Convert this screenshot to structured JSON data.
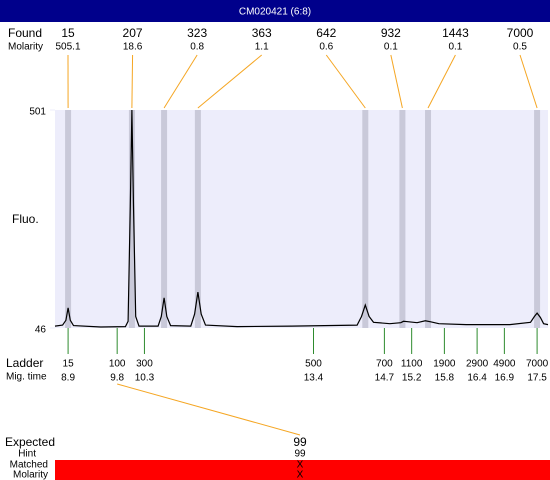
{
  "chart_data": {
    "type": "line",
    "title": "CM020421 (6:8)",
    "found_label": "Found",
    "molarity_label": "Molarity",
    "y_label": "Fluo.",
    "ladder_label": "Ladder",
    "time_label": "Mig. time",
    "ylim": [
      46,
      501
    ],
    "yticks": [
      46,
      501
    ],
    "xlim": [
      8.66,
      17.7
    ],
    "found": [
      {
        "size": 15,
        "molarity": 505.1,
        "time": 8.9
      },
      {
        "size": 207,
        "molarity": 18.6,
        "time": 10.07
      },
      {
        "size": 323,
        "molarity": 0.8,
        "time": 10.66
      },
      {
        "size": 363,
        "molarity": 1.1,
        "time": 11.28
      },
      {
        "size": 642,
        "molarity": 0.6,
        "time": 14.35
      },
      {
        "size": 932,
        "molarity": 0.1,
        "time": 15.03
      },
      {
        "size": 1443,
        "molarity": 0.1,
        "time": 15.5
      },
      {
        "size": 7000,
        "molarity": 0.5,
        "time": 17.5
      }
    ],
    "ladder": [
      {
        "size": 15,
        "time": 8.9
      },
      {
        "size": 100,
        "time": 9.8
      },
      {
        "size": 300,
        "time": 10.3
      },
      {
        "size": 500,
        "time": 13.4
      },
      {
        "size": 700,
        "time": 14.7
      },
      {
        "size": 1100,
        "time": 15.2
      },
      {
        "size": 1900,
        "time": 15.8
      },
      {
        "size": 2900,
        "time": 16.4
      },
      {
        "size": 4900,
        "time": 16.9
      },
      {
        "size": 7000,
        "time": 17.5
      }
    ],
    "trace": {
      "x": [
        8.66,
        8.8,
        8.86,
        8.9,
        8.94,
        9.0,
        9.5,
        9.95,
        10.0,
        10.04,
        10.07,
        10.1,
        10.14,
        10.2,
        10.55,
        10.61,
        10.66,
        10.71,
        10.78,
        11.15,
        11.22,
        11.28,
        11.34,
        11.42,
        12.0,
        13.0,
        14.2,
        14.28,
        14.35,
        14.42,
        14.5,
        14.8,
        15.0,
        15.05,
        15.15,
        15.3,
        15.45,
        15.55,
        15.7,
        16.2,
        17.0,
        17.38,
        17.45,
        17.5,
        17.56,
        17.62,
        17.7
      ],
      "values": [
        50,
        52,
        62,
        88,
        62,
        51,
        48,
        49,
        60,
        300,
        501,
        300,
        70,
        50,
        50,
        70,
        109,
        70,
        51,
        50,
        75,
        121,
        75,
        52,
        49,
        50,
        52,
        70,
        94,
        70,
        58,
        55,
        57,
        60,
        59,
        57,
        61,
        59,
        55,
        53,
        53,
        58,
        70,
        77,
        68,
        55,
        53
      ],
      "color": "#000000"
    },
    "expected": {
      "label": "Expected",
      "value": 99,
      "hint_label": "Hint",
      "hint": 99,
      "matched_label": "Matched",
      "matched": "X",
      "molarity_label": "Molarity",
      "molarity": "X"
    }
  }
}
